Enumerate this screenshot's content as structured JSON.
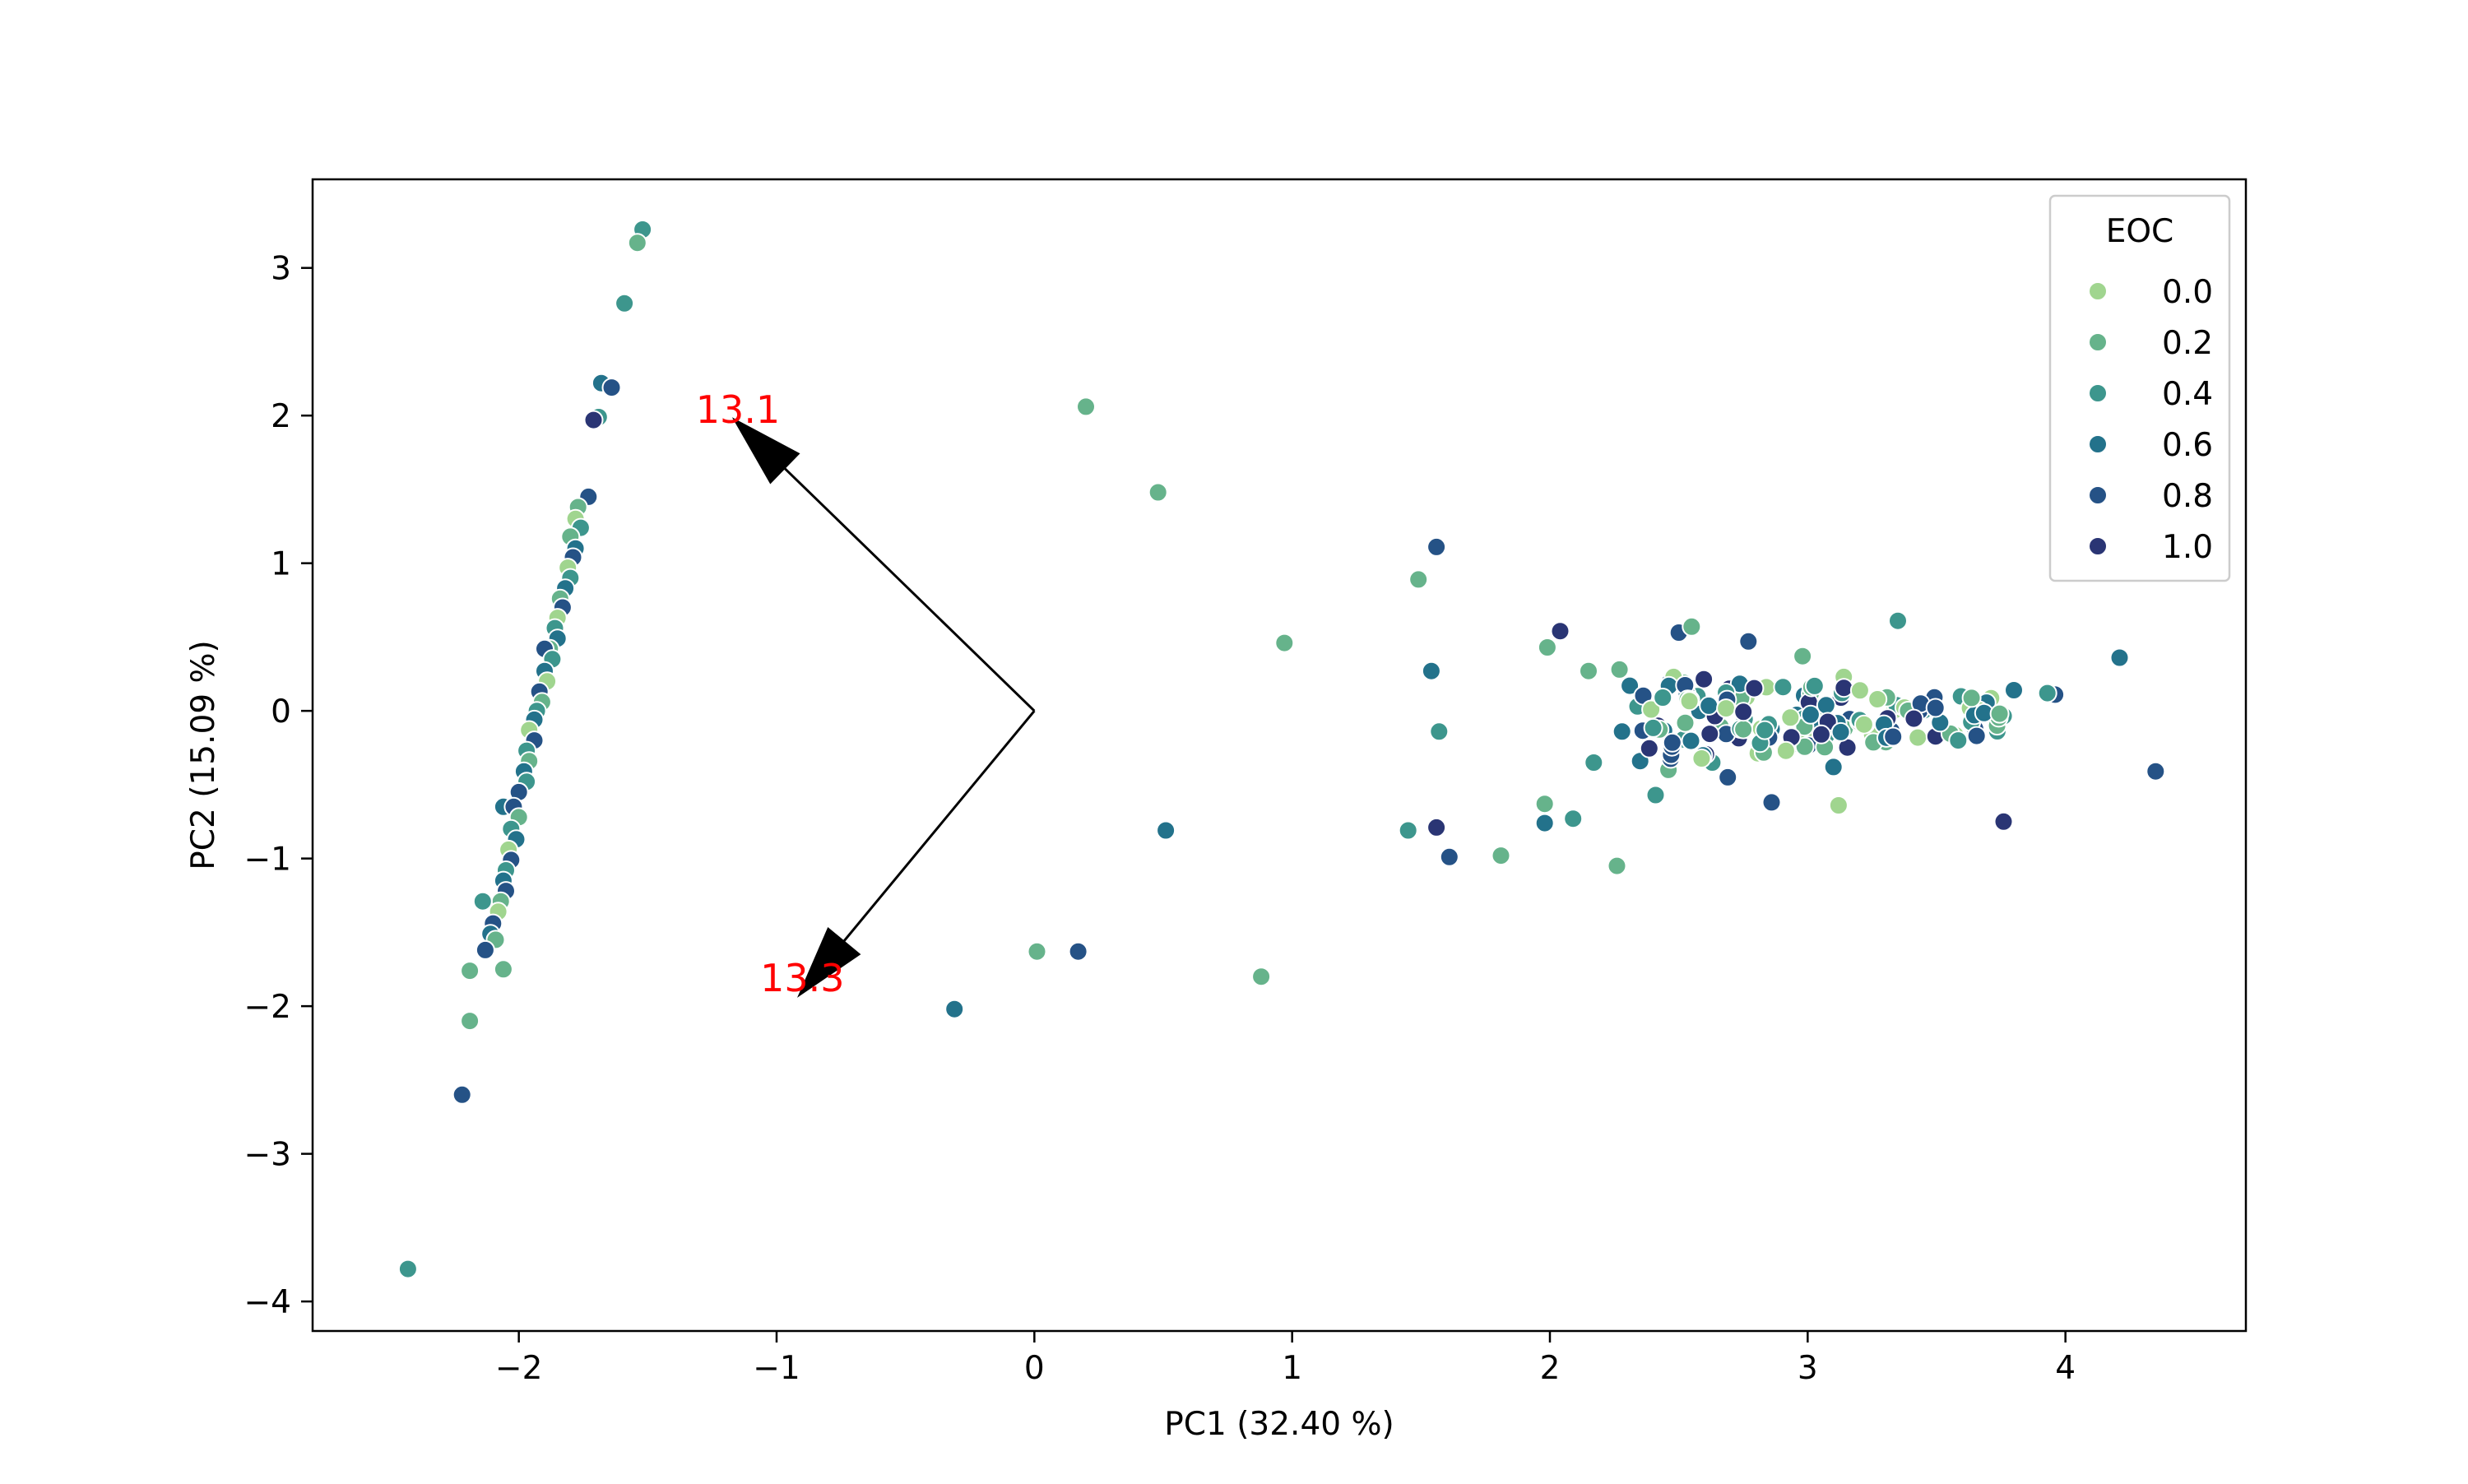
{
  "chart_data": {
    "type": "scatter",
    "title": "",
    "xlabel": "PC1 (32.40 %)",
    "ylabel": "PC2 (15.09 %)",
    "xlim": [
      -2.8,
      4.7
    ],
    "ylim": [
      -4.2,
      3.6
    ],
    "xticks": [
      -2,
      -1,
      0,
      1,
      2,
      3,
      4
    ],
    "yticks": [
      -4,
      -3,
      -2,
      -1,
      0,
      1,
      2,
      3
    ],
    "xtick_labels": [
      "−2",
      "−1",
      "0",
      "1",
      "2",
      "3",
      "4"
    ],
    "ytick_labels": [
      "−4",
      "−3",
      "−2",
      "−1",
      "0",
      "1",
      "2",
      "3"
    ],
    "grid": false,
    "legend": {
      "title": "EOC",
      "placement": "top-right",
      "entries": [
        {
          "label": "0.0",
          "color": "#a0d58f"
        },
        {
          "label": "0.2",
          "color": "#66b38b"
        },
        {
          "label": "0.4",
          "color": "#3d968d"
        },
        {
          "label": "0.6",
          "color": "#23728b"
        },
        {
          "label": "0.8",
          "color": "#255286"
        },
        {
          "label": "1.0",
          "color": "#2a3574"
        }
      ]
    },
    "loadings": [
      {
        "label": "13.1",
        "x": -1.15,
        "y": 1.95,
        "label_color": "#ff0000"
      },
      {
        "label": "13.3",
        "x": -0.9,
        "y": -1.9,
        "label_color": "#ff0000"
      }
    ],
    "points": [
      {
        "x": -1.52,
        "y": 3.26,
        "eoc": 0.4
      },
      {
        "x": -1.54,
        "y": 3.17,
        "eoc": 0.2
      },
      {
        "x": -1.59,
        "y": 2.76,
        "eoc": 0.4
      },
      {
        "x": -1.68,
        "y": 2.22,
        "eoc": 0.6
      },
      {
        "x": -1.64,
        "y": 2.19,
        "eoc": 0.8
      },
      {
        "x": -1.69,
        "y": 1.99,
        "eoc": 0.4
      },
      {
        "x": -1.71,
        "y": 1.97,
        "eoc": 1.0
      },
      {
        "x": -1.73,
        "y": 1.45,
        "eoc": 0.8
      },
      {
        "x": -1.77,
        "y": 1.38,
        "eoc": 0.2
      },
      {
        "x": -1.78,
        "y": 1.3,
        "eoc": 0.0
      },
      {
        "x": -1.76,
        "y": 1.24,
        "eoc": 0.4
      },
      {
        "x": -1.8,
        "y": 1.18,
        "eoc": 0.2
      },
      {
        "x": -1.78,
        "y": 1.1,
        "eoc": 0.6
      },
      {
        "x": -1.79,
        "y": 1.04,
        "eoc": 0.8
      },
      {
        "x": -1.81,
        "y": 0.97,
        "eoc": 0.0
      },
      {
        "x": -1.8,
        "y": 0.9,
        "eoc": 0.4
      },
      {
        "x": -1.82,
        "y": 0.83,
        "eoc": 0.6
      },
      {
        "x": -1.84,
        "y": 0.76,
        "eoc": 0.2
      },
      {
        "x": -1.83,
        "y": 0.7,
        "eoc": 0.8
      },
      {
        "x": -1.85,
        "y": 0.63,
        "eoc": 0.0
      },
      {
        "x": -1.86,
        "y": 0.56,
        "eoc": 0.4
      },
      {
        "x": -1.85,
        "y": 0.49,
        "eoc": 0.6
      },
      {
        "x": -1.88,
        "y": 0.42,
        "eoc": 0.2
      },
      {
        "x": -1.9,
        "y": 0.42,
        "eoc": 0.8
      },
      {
        "x": -1.87,
        "y": 0.35,
        "eoc": 0.4
      },
      {
        "x": -1.9,
        "y": 0.27,
        "eoc": 0.6
      },
      {
        "x": -1.89,
        "y": 0.2,
        "eoc": 0.0
      },
      {
        "x": -1.92,
        "y": 0.13,
        "eoc": 0.8
      },
      {
        "x": -1.91,
        "y": 0.06,
        "eoc": 0.2
      },
      {
        "x": -1.93,
        "y": 0.0,
        "eoc": 0.4
      },
      {
        "x": -1.94,
        "y": -0.06,
        "eoc": 0.6
      },
      {
        "x": -1.96,
        "y": -0.13,
        "eoc": 0.0
      },
      {
        "x": -1.94,
        "y": -0.2,
        "eoc": 0.8
      },
      {
        "x": -1.97,
        "y": -0.27,
        "eoc": 0.4
      },
      {
        "x": -1.96,
        "y": -0.34,
        "eoc": 0.2
      },
      {
        "x": -1.98,
        "y": -0.41,
        "eoc": 0.6
      },
      {
        "x": -1.97,
        "y": -0.48,
        "eoc": 0.4
      },
      {
        "x": -2.0,
        "y": -0.55,
        "eoc": 0.8
      },
      {
        "x": -2.06,
        "y": -0.65,
        "eoc": 0.6
      },
      {
        "x": -2.02,
        "y": -0.65,
        "eoc": 0.8
      },
      {
        "x": -2.0,
        "y": -0.72,
        "eoc": 0.2
      },
      {
        "x": -2.03,
        "y": -0.8,
        "eoc": 0.4
      },
      {
        "x": -2.01,
        "y": -0.87,
        "eoc": 0.6
      },
      {
        "x": -2.04,
        "y": -0.94,
        "eoc": 0.0
      },
      {
        "x": -2.03,
        "y": -1.01,
        "eoc": 0.8
      },
      {
        "x": -2.05,
        "y": -1.08,
        "eoc": 0.4
      },
      {
        "x": -2.06,
        "y": -1.15,
        "eoc": 0.6
      },
      {
        "x": -2.05,
        "y": -1.22,
        "eoc": 0.8
      },
      {
        "x": -2.07,
        "y": -1.29,
        "eoc": 0.2
      },
      {
        "x": -2.14,
        "y": -1.29,
        "eoc": 0.4
      },
      {
        "x": -2.08,
        "y": -1.36,
        "eoc": 0.0
      },
      {
        "x": -2.1,
        "y": -1.44,
        "eoc": 0.8
      },
      {
        "x": -2.11,
        "y": -1.51,
        "eoc": 0.6
      },
      {
        "x": -2.09,
        "y": -1.55,
        "eoc": 0.2
      },
      {
        "x": -2.13,
        "y": -1.62,
        "eoc": 0.8
      },
      {
        "x": -2.19,
        "y": -1.76,
        "eoc": 0.2
      },
      {
        "x": -2.06,
        "y": -1.75,
        "eoc": 0.2
      },
      {
        "x": -2.19,
        "y": -2.1,
        "eoc": 0.2
      },
      {
        "x": -2.22,
        "y": -2.6,
        "eoc": 0.8
      },
      {
        "x": -2.43,
        "y": -3.78,
        "eoc": 0.4
      },
      {
        "x": 0.2,
        "y": 2.06,
        "eoc": 0.2
      },
      {
        "x": 0.48,
        "y": 1.48,
        "eoc": 0.2
      },
      {
        "x": 0.97,
        "y": 0.46,
        "eoc": 0.2
      },
      {
        "x": 0.51,
        "y": -0.81,
        "eoc": 0.6
      },
      {
        "x": 0.01,
        "y": -1.63,
        "eoc": 0.2
      },
      {
        "x": 0.17,
        "y": -1.63,
        "eoc": 0.8
      },
      {
        "x": -0.31,
        "y": -2.02,
        "eoc": 0.6
      },
      {
        "x": 0.88,
        "y": -1.8,
        "eoc": 0.2
      },
      {
        "x": 1.56,
        "y": 1.11,
        "eoc": 0.8
      },
      {
        "x": 1.49,
        "y": 0.89,
        "eoc": 0.2
      },
      {
        "x": 1.54,
        "y": 0.27,
        "eoc": 0.6
      },
      {
        "x": 1.57,
        "y": -0.14,
        "eoc": 0.4
      },
      {
        "x": 1.45,
        "y": -0.81,
        "eoc": 0.4
      },
      {
        "x": 1.56,
        "y": -0.79,
        "eoc": 1.0
      },
      {
        "x": 1.61,
        "y": -0.99,
        "eoc": 0.8
      },
      {
        "x": 1.81,
        "y": -0.98,
        "eoc": 0.2
      },
      {
        "x": 1.98,
        "y": -0.63,
        "eoc": 0.2
      },
      {
        "x": 1.98,
        "y": -0.76,
        "eoc": 0.6
      },
      {
        "x": 2.09,
        "y": -0.73,
        "eoc": 0.4
      },
      {
        "x": 2.26,
        "y": -1.05,
        "eoc": 0.2
      },
      {
        "x": 2.04,
        "y": 0.54,
        "eoc": 1.0
      },
      {
        "x": 1.99,
        "y": 0.43,
        "eoc": 0.2
      },
      {
        "x": 2.15,
        "y": 0.27,
        "eoc": 0.2
      },
      {
        "x": 2.27,
        "y": 0.28,
        "eoc": 0.2
      },
      {
        "x": 2.31,
        "y": 0.17,
        "eoc": 0.6
      },
      {
        "x": 2.34,
        "y": 0.03,
        "eoc": 0.4
      },
      {
        "x": 2.28,
        "y": -0.14,
        "eoc": 0.6
      },
      {
        "x": 2.17,
        "y": -0.35,
        "eoc": 0.4
      },
      {
        "x": 2.35,
        "y": -0.34,
        "eoc": 0.6
      },
      {
        "x": 2.41,
        "y": -0.57,
        "eoc": 0.4
      },
      {
        "x": 2.46,
        "y": -0.4,
        "eoc": 0.2
      },
      {
        "x": 2.52,
        "y": 0.19,
        "eoc": 0.2
      },
      {
        "x": 2.5,
        "y": 0.53,
        "eoc": 0.8
      },
      {
        "x": 2.55,
        "y": 0.57,
        "eoc": 0.2
      },
      {
        "x": 2.58,
        "y": 0.0,
        "eoc": 0.6
      },
      {
        "x": 2.63,
        "y": -0.35,
        "eoc": 0.4
      },
      {
        "x": 2.69,
        "y": -0.45,
        "eoc": 0.8
      },
      {
        "x": 2.77,
        "y": 0.47,
        "eoc": 0.8
      },
      {
        "x": 2.86,
        "y": -0.62,
        "eoc": 0.8
      },
      {
        "x": 2.98,
        "y": 0.37,
        "eoc": 0.2
      },
      {
        "x": 3.1,
        "y": -0.38,
        "eoc": 0.6
      },
      {
        "x": 3.12,
        "y": -0.64,
        "eoc": 0.0
      },
      {
        "x": 3.35,
        "y": 0.61,
        "eoc": 0.4
      },
      {
        "x": 3.14,
        "y": 0.23,
        "eoc": 0.0
      },
      {
        "x": 3.25,
        "y": -0.16,
        "eoc": 0.0
      },
      {
        "x": 4.21,
        "y": 0.36,
        "eoc": 0.6
      },
      {
        "x": 4.35,
        "y": -0.41,
        "eoc": 0.8
      },
      {
        "x": 3.76,
        "y": -0.75,
        "eoc": 1.0
      },
      {
        "x": 3.96,
        "y": 0.11,
        "eoc": 0.8
      },
      {
        "x": 3.93,
        "y": 0.12,
        "eoc": 0.4
      },
      {
        "x": 3.8,
        "y": 0.14,
        "eoc": 0.6
      }
    ],
    "cluster": {
      "x_range": [
        2.35,
        3.8
      ],
      "y_range": [
        -0.35,
        0.25
      ],
      "count": 140,
      "eoc_levels": [
        0.2,
        0.4,
        0.6,
        0.8,
        1.0,
        0.0
      ]
    }
  }
}
